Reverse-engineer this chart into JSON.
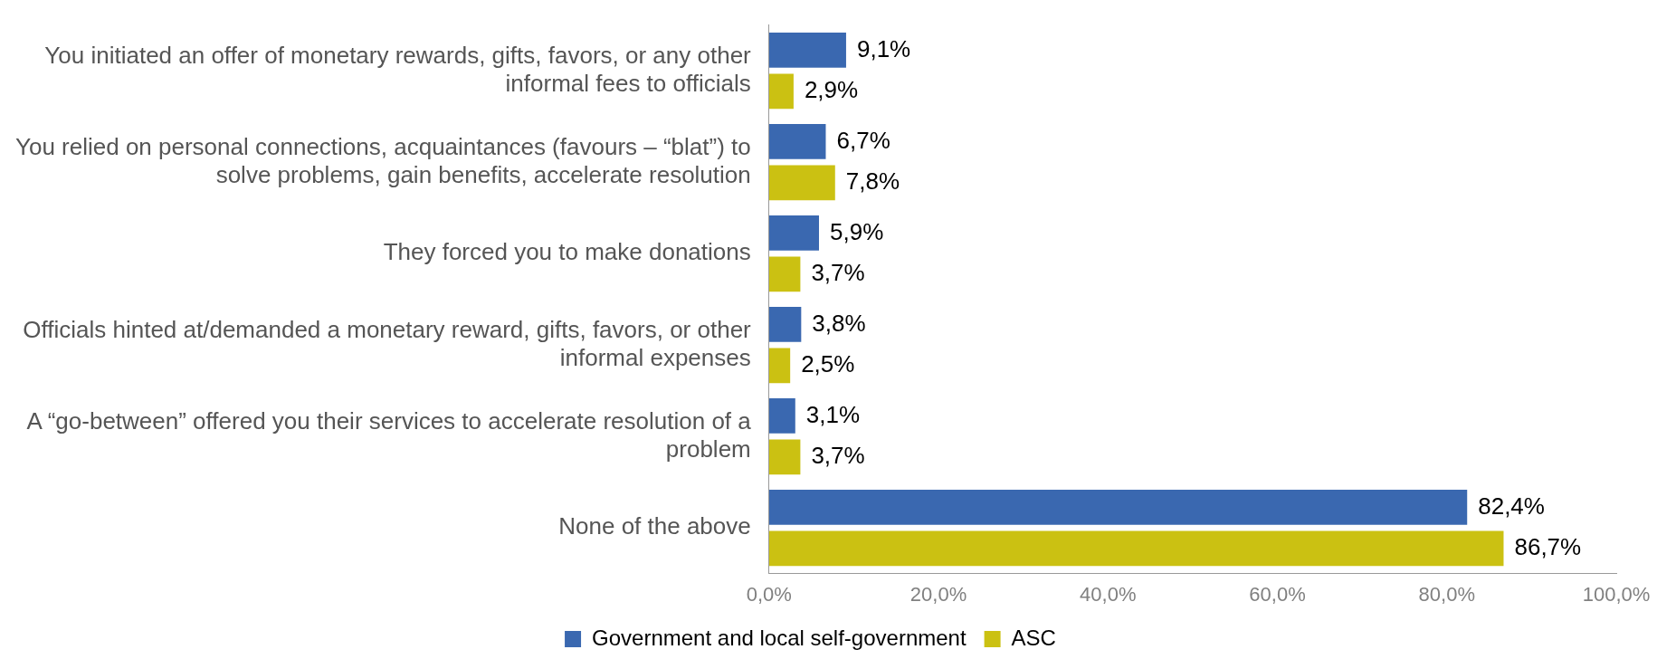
{
  "chart_data": {
    "type": "bar",
    "orientation": "horizontal",
    "categories": [
      "You initiated an offer of monetary rewards, gifts, favors, or any other informal fees to officials",
      "You relied on personal connections, acquaintances (favours – “blat”) to solve problems, gain benefits, accelerate resolution",
      "They forced you to make donations",
      "Officials hinted at/demanded a monetary reward, gifts, favors, or other informal expenses",
      "A “go-between” offered you their services to accelerate resolution of a problem",
      "None of the above"
    ],
    "series": [
      {
        "name": "Government and local self-government",
        "color": "#3a68b0",
        "values": [
          9.1,
          6.7,
          5.9,
          3.8,
          3.1,
          82.4
        ],
        "value_labels": [
          "9,1%",
          "6,7%",
          "5,9%",
          "3,8%",
          "3,1%",
          "82,4%"
        ]
      },
      {
        "name": "ASC",
        "color": "#cbc112",
        "values": [
          2.9,
          7.8,
          3.7,
          2.5,
          3.7,
          86.7
        ],
        "value_labels": [
          "2,9%",
          "7,8%",
          "3,7%",
          "2,5%",
          "3,7%",
          "86,7%"
        ]
      }
    ],
    "xlim": [
      0,
      100
    ],
    "xticks": [
      {
        "value": 0,
        "label": "0,0%"
      },
      {
        "value": 20,
        "label": "20,0%"
      },
      {
        "value": 40,
        "label": "40,0%"
      },
      {
        "value": 60,
        "label": "60,0%"
      },
      {
        "value": 80,
        "label": "80,0%"
      },
      {
        "value": 100,
        "label": "100,0%"
      }
    ],
    "grid": false,
    "legend": "bottom"
  }
}
